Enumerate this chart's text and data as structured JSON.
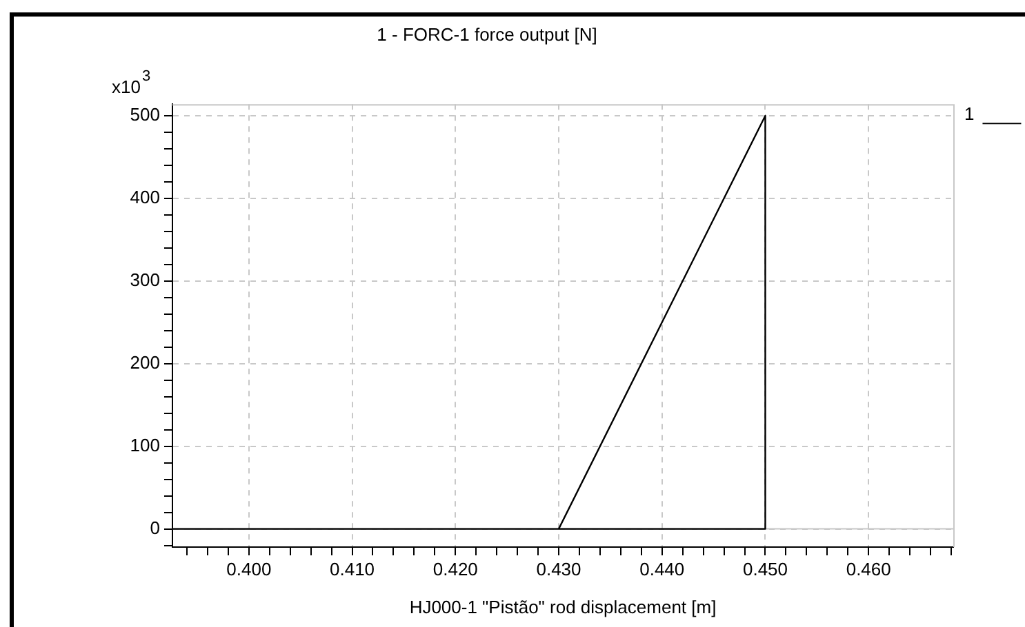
{
  "chart_data": {
    "type": "line",
    "title": "1 - FORC-1 force output [N]",
    "xlabel": "HJ000-1 \"Pistão\" rod displacement [m]",
    "ylabel": "x10$^{3}$",
    "series": [
      {
        "name": "1",
        "color": "#000000",
        "x": [
          0.3926,
          0.43,
          0.45,
          0.45,
          0.43
        ],
        "values": [
          0,
          0,
          500,
          0,
          0
        ]
      }
    ],
    "xlim": [
      0.3926,
      0.4682
    ],
    "xticks": [
      {
        "value": 0.394,
        "label": null
      },
      {
        "value": 0.396,
        "label": null
      },
      {
        "value": 0.398,
        "label": null
      },
      {
        "value": 0.4,
        "label": "0.400"
      },
      {
        "value": 0.402,
        "label": null
      },
      {
        "value": 0.404,
        "label": null
      },
      {
        "value": 0.406,
        "label": null
      },
      {
        "value": 0.408,
        "label": null
      },
      {
        "value": 0.41,
        "label": "0.410"
      },
      {
        "value": 0.412,
        "label": null
      },
      {
        "value": 0.414,
        "label": null
      },
      {
        "value": 0.416,
        "label": null
      },
      {
        "value": 0.418,
        "label": null
      },
      {
        "value": 0.42,
        "label": "0.420"
      },
      {
        "value": 0.422,
        "label": null
      },
      {
        "value": 0.424,
        "label": null
      },
      {
        "value": 0.426,
        "label": null
      },
      {
        "value": 0.428,
        "label": null
      },
      {
        "value": 0.43,
        "label": "0.430"
      },
      {
        "value": 0.432,
        "label": null
      },
      {
        "value": 0.434,
        "label": null
      },
      {
        "value": 0.436,
        "label": null
      },
      {
        "value": 0.438,
        "label": null
      },
      {
        "value": 0.44,
        "label": "0.440"
      },
      {
        "value": 0.442,
        "label": null
      },
      {
        "value": 0.444,
        "label": null
      },
      {
        "value": 0.446,
        "label": null
      },
      {
        "value": 0.448,
        "label": null
      },
      {
        "value": 0.45,
        "label": "0.450"
      },
      {
        "value": 0.452,
        "label": null
      },
      {
        "value": 0.454,
        "label": null
      },
      {
        "value": 0.456,
        "label": null
      },
      {
        "value": 0.458,
        "label": null
      },
      {
        "value": 0.46,
        "label": "0.460"
      },
      {
        "value": 0.462,
        "label": null
      },
      {
        "value": 0.464,
        "label": null
      },
      {
        "value": 0.466,
        "label": null
      },
      {
        "value": 0.468,
        "label": null
      }
    ],
    "ylim": [
      -22,
      514
    ],
    "yticks": [
      {
        "value": -20,
        "label": null
      },
      0,
      {
        "value": 20,
        "label": null
      },
      {
        "value": 40,
        "label": null
      },
      {
        "value": 60,
        "label": null
      },
      {
        "value": 80,
        "label": null
      },
      100,
      {
        "value": 120,
        "label": null
      },
      {
        "value": 140,
        "label": null
      },
      {
        "value": 160,
        "label": null
      },
      {
        "value": 180,
        "label": null
      },
      200,
      {
        "value": 220,
        "label": null
      },
      {
        "value": 240,
        "label": null
      },
      {
        "value": 260,
        "label": null
      },
      {
        "value": 280,
        "label": null
      },
      300,
      {
        "value": 320,
        "label": null
      },
      {
        "value": 340,
        "label": null
      },
      {
        "value": 360,
        "label": null
      },
      {
        "value": 380,
        "label": null
      },
      400,
      {
        "value": 420,
        "label": null
      },
      {
        "value": 440,
        "label": null
      },
      {
        "value": 460,
        "label": null
      },
      {
        "value": 480,
        "label": null
      },
      500
    ],
    "ref_lines": [
      {
        "axis": "y",
        "value": 0,
        "color": "#c8c8c8"
      }
    ],
    "grid": true,
    "legend": "top right",
    "line_style": "solid",
    "marker": "none"
  }
}
